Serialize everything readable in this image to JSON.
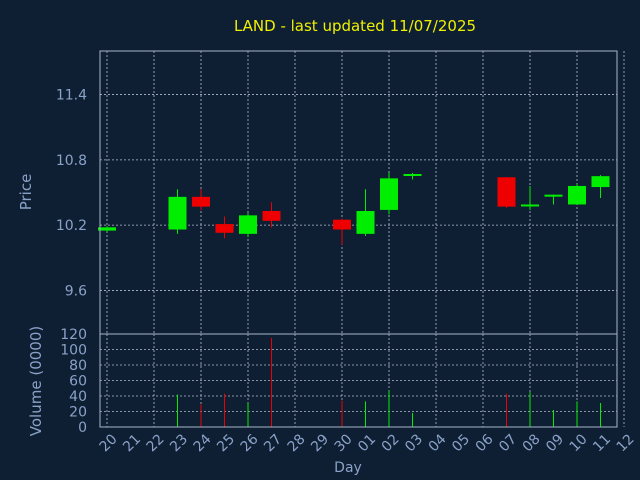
{
  "colors": {
    "background": "#0f1f33",
    "title": "#f0f000",
    "axis_text": "#8aa2c8",
    "grid": "#b4bccc",
    "frame": "#a8b4c8",
    "up": "#00ee00",
    "down": "#ee0000"
  },
  "chart_data": {
    "type": "candlestick",
    "title": "LAND - last updated 11/07/2025",
    "xlabel": "Day",
    "ylabel_price": "Price",
    "ylabel_volume": "Volume (0000)",
    "grid": true,
    "price_ylim": [
      9.2,
      11.8
    ],
    "price_yticks": [
      "9.6",
      "10.2",
      "10.8",
      "11.4"
    ],
    "volume_ylim": [
      0,
      120
    ],
    "volume_yticks": [
      "0",
      "20",
      "40",
      "60",
      "80",
      "100",
      "120"
    ],
    "x_tick_labels": [
      "20",
      "21",
      "22",
      "23",
      "24",
      "25",
      "26",
      "27",
      "28",
      "29",
      "30",
      "01",
      "02",
      "03",
      "04",
      "05",
      "06",
      "07",
      "08",
      "09",
      "10",
      "11",
      "12"
    ],
    "candles": [
      {
        "day": "20",
        "open": 10.15,
        "close": 10.18,
        "high": 10.19,
        "low": 10.14,
        "volume": 1
      },
      {
        "day": "23",
        "open": 10.16,
        "close": 10.46,
        "high": 10.53,
        "low": 10.12,
        "volume": 42
      },
      {
        "day": "24",
        "open": 10.46,
        "close": 10.37,
        "high": 10.53,
        "low": 10.34,
        "volume": 29
      },
      {
        "day": "25",
        "open": 10.21,
        "close": 10.13,
        "high": 10.28,
        "low": 10.08,
        "volume": 43
      },
      {
        "day": "26",
        "open": 10.12,
        "close": 10.29,
        "high": 10.31,
        "low": 10.09,
        "volume": 31
      },
      {
        "day": "27",
        "open": 10.33,
        "close": 10.24,
        "high": 10.41,
        "low": 10.18,
        "volume": 115
      },
      {
        "day": "30",
        "open": 10.25,
        "close": 10.16,
        "high": 10.26,
        "low": 10.02,
        "volume": 34
      },
      {
        "day": "01",
        "open": 10.12,
        "close": 10.33,
        "high": 10.53,
        "low": 10.1,
        "volume": 33
      },
      {
        "day": "02",
        "open": 10.34,
        "close": 10.63,
        "high": 10.68,
        "low": 10.3,
        "volume": 47
      },
      {
        "day": "03",
        "open": 10.66,
        "close": 10.67,
        "high": 10.68,
        "low": 10.62,
        "volume": 18
      },
      {
        "day": "07",
        "open": 10.64,
        "close": 10.37,
        "high": 10.64,
        "low": 10.36,
        "volume": 43
      },
      {
        "day": "08",
        "open": 10.38,
        "close": 10.39,
        "high": 10.56,
        "low": 10.34,
        "volume": 45
      },
      {
        "day": "09",
        "open": 10.47,
        "close": 10.48,
        "high": 10.48,
        "low": 10.39,
        "volume": 22
      },
      {
        "day": "10",
        "open": 10.39,
        "close": 10.56,
        "high": 10.58,
        "low": 10.39,
        "volume": 33
      },
      {
        "day": "11",
        "open": 10.55,
        "close": 10.65,
        "high": 10.66,
        "low": 10.45,
        "volume": 31
      }
    ]
  }
}
